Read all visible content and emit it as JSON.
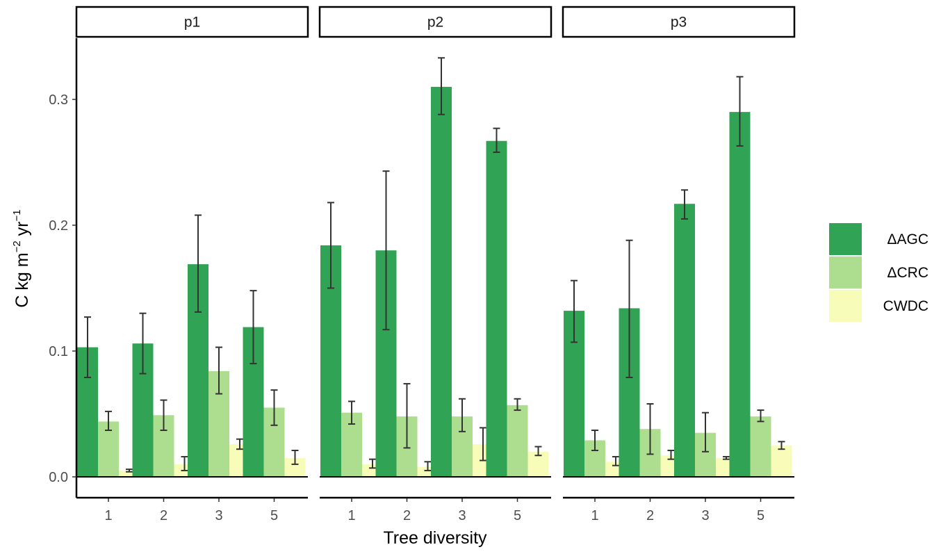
{
  "chart_data": {
    "type": "bar",
    "facets": [
      {
        "label": "p1",
        "categories": [
          "1",
          "2",
          "3",
          "5"
        ],
        "series": [
          {
            "name": "ΔAGC",
            "values": [
              0.103,
              0.106,
              0.169,
              0.119
            ],
            "error_low": [
              0.079,
              0.082,
              0.131,
              0.09
            ],
            "error_high": [
              0.127,
              0.13,
              0.208,
              0.148
            ]
          },
          {
            "name": "ΔCRC",
            "values": [
              0.044,
              0.049,
              0.084,
              0.055
            ],
            "error_low": [
              0.037,
              0.037,
              0.066,
              0.041
            ],
            "error_high": [
              0.052,
              0.061,
              0.103,
              0.069
            ]
          },
          {
            "name": "CWDC",
            "values": [
              0.005,
              0.01,
              0.026,
              0.015
            ],
            "error_low": [
              0.004,
              0.005,
              0.022,
              0.01
            ],
            "error_high": [
              0.006,
              0.016,
              0.03,
              0.021
            ]
          }
        ]
      },
      {
        "label": "p2",
        "categories": [
          "1",
          "2",
          "3",
          "5"
        ],
        "series": [
          {
            "name": "ΔAGC",
            "values": [
              0.184,
              0.18,
              0.31,
              0.267
            ],
            "error_low": [
              0.15,
              0.117,
              0.288,
              0.258
            ],
            "error_high": [
              0.218,
              0.243,
              0.333,
              0.277
            ]
          },
          {
            "name": "ΔCRC",
            "values": [
              0.051,
              0.048,
              0.048,
              0.057
            ],
            "error_low": [
              0.042,
              0.023,
              0.036,
              0.053
            ],
            "error_high": [
              0.06,
              0.074,
              0.062,
              0.062
            ]
          },
          {
            "name": "CWDC",
            "values": [
              0.01,
              0.008,
              0.026,
              0.02
            ],
            "error_low": [
              0.007,
              0.005,
              0.013,
              0.017
            ],
            "error_high": [
              0.014,
              0.012,
              0.039,
              0.024
            ]
          }
        ]
      },
      {
        "label": "p3",
        "categories": [
          "1",
          "2",
          "3",
          "5"
        ],
        "series": [
          {
            "name": "ΔAGC",
            "values": [
              0.132,
              0.134,
              0.217,
              0.29
            ],
            "error_low": [
              0.107,
              0.079,
              0.205,
              0.263
            ],
            "error_high": [
              0.156,
              0.188,
              0.228,
              0.318
            ]
          },
          {
            "name": "ΔCRC",
            "values": [
              0.029,
              0.038,
              0.035,
              0.048
            ],
            "error_low": [
              0.021,
              0.018,
              0.02,
              0.044
            ],
            "error_high": [
              0.037,
              0.058,
              0.051,
              0.053
            ]
          },
          {
            "name": "CWDC",
            "values": [
              0.012,
              0.017,
              0.015,
              0.025
            ],
            "error_low": [
              0.009,
              0.014,
              0.014,
              0.022
            ],
            "error_high": [
              0.016,
              0.021,
              0.016,
              0.028
            ]
          }
        ]
      }
    ],
    "xlabel": "Tree diversity",
    "ylabel": {
      "base": "C kg m",
      "sup1": "−2",
      "mid": " yr",
      "sup2": "−1"
    },
    "ylim": [
      -0.016,
      0.35
    ],
    "yticks": [
      0.0,
      0.1,
      0.2,
      0.3
    ],
    "ytick_labels": [
      "0.0",
      "0.1",
      "0.2",
      "0.3"
    ],
    "hline": 0,
    "grid": false,
    "legend_position": "right",
    "colors": {
      "ΔAGC": "#31a354",
      "ΔCRC": "#addd8e",
      "CWDC": "#f7fcb9"
    },
    "error_bar_color": "#333333"
  }
}
